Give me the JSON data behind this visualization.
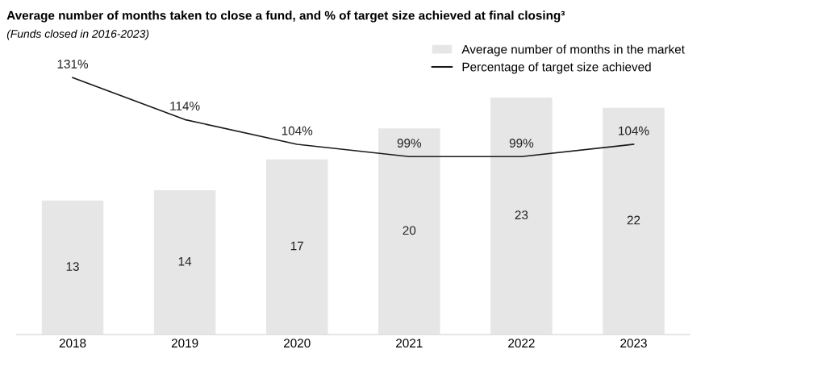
{
  "chart_data": {
    "type": "bar",
    "title": "Average number of months taken to close a fund, and % of target size achieved at final closing³",
    "subtitle": "(Funds closed in 2016-2023)",
    "categories": [
      "2018",
      "2019",
      "2020",
      "2021",
      "2022",
      "2023"
    ],
    "series": [
      {
        "name": "Average number of months in the market",
        "color": "#e6e6e6",
        "values": [
          13,
          14,
          17,
          20,
          23,
          22
        ],
        "value_labels": [
          "13",
          "14",
          "17",
          "20",
          "23",
          "22"
        ]
      },
      {
        "name": "Percentage of target size achieved",
        "type": "line",
        "axis": "y2",
        "color": "#1a1a1a",
        "values": [
          131,
          114,
          104,
          99,
          99,
          104
        ],
        "value_labels": [
          "131%",
          "114%",
          "104%",
          "99%",
          "99%",
          "104%"
        ]
      }
    ],
    "tick_labels": "x",
    "grid": false,
    "legend": "top right",
    "marker": "none",
    "line_style": "solid"
  }
}
